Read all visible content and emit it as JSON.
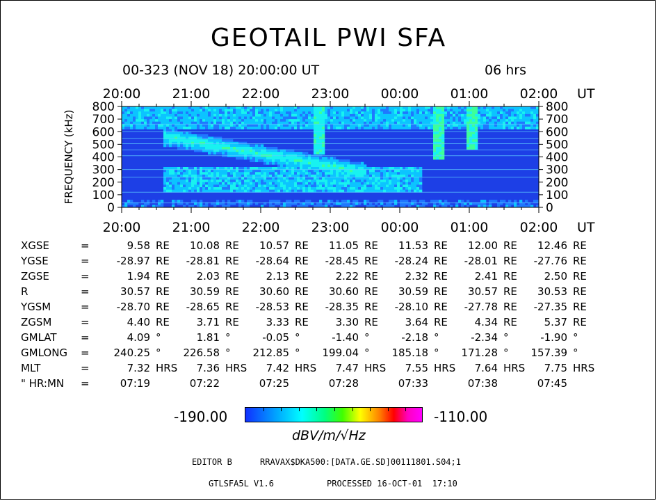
{
  "title": "GEOTAIL PWI SFA",
  "subtitle": {
    "date": "00-323 (NOV 18) 20:00:00 UT",
    "span": "06 hrs"
  },
  "chart_data": {
    "type": "heatmap",
    "title": "GEOTAIL PWI SFA",
    "xlabel": "UT",
    "ylabel": "FREQUENCY (kHz)",
    "x_ticks": [
      "20:00",
      "21:00",
      "22:00",
      "23:00",
      "00:00",
      "01:00",
      "02:00"
    ],
    "y_ticks": [
      "0",
      "100",
      "200",
      "300",
      "400",
      "500",
      "600",
      "700",
      "800"
    ],
    "ylim": [
      0,
      800
    ],
    "colorbar": {
      "min": "-190.00",
      "max": "-110.00",
      "unit": "dBV/m/√Hz",
      "colors": [
        "#1030ff",
        "#00ffff",
        "#40ff00",
        "#ffff00",
        "#ff0000",
        "#ff00ff"
      ]
    },
    "features": [
      {
        "name": "emission band",
        "t_start": 0.6,
        "t_end": 3.5,
        "f_start": 560,
        "f_end": 280,
        "level": 0.45
      },
      {
        "name": "broad band",
        "t_start": 0.6,
        "t_end": 4.3,
        "f_low": 120,
        "f_high": 320,
        "level": 0.35
      },
      {
        "name": "burst",
        "t": 2.85,
        "f_low": 420,
        "f_high": 800,
        "level": 0.4
      },
      {
        "name": "burst",
        "t": 4.55,
        "f_low": 380,
        "f_high": 800,
        "level": 0.45
      },
      {
        "name": "burst",
        "t": 5.05,
        "f_low": 460,
        "f_high": 800,
        "level": 0.45
      }
    ]
  },
  "orbit": {
    "rows": [
      {
        "name": "XGSE",
        "values": [
          "9.58",
          "10.08",
          "10.57",
          "11.05",
          "11.53",
          "12.00",
          "12.46"
        ],
        "unit": "RE"
      },
      {
        "name": "YGSE",
        "values": [
          "-28.97",
          "-28.81",
          "-28.64",
          "-28.45",
          "-28.24",
          "-28.01",
          "-27.76"
        ],
        "unit": "RE"
      },
      {
        "name": "ZGSE",
        "values": [
          "1.94",
          "2.03",
          "2.13",
          "2.22",
          "2.32",
          "2.41",
          "2.50"
        ],
        "unit": "RE"
      },
      {
        "name": "R",
        "values": [
          "30.57",
          "30.59",
          "30.60",
          "30.60",
          "30.59",
          "30.57",
          "30.53"
        ],
        "unit": "RE"
      },
      {
        "name": "YGSM",
        "values": [
          "-28.70",
          "-28.65",
          "-28.53",
          "-28.35",
          "-28.10",
          "-27.78",
          "-27.35"
        ],
        "unit": "RE"
      },
      {
        "name": "ZGSM",
        "values": [
          "4.40",
          "3.71",
          "3.33",
          "3.30",
          "3.64",
          "4.34",
          "5.37"
        ],
        "unit": "RE"
      },
      {
        "name": "GMLAT",
        "values": [
          "4.09",
          "1.81",
          "-0.05",
          "-1.40",
          "-2.18",
          "-2.34",
          "-1.90"
        ],
        "unit": "°"
      },
      {
        "name": "GMLONG",
        "values": [
          "240.25",
          "226.58",
          "212.85",
          "199.04",
          "185.18",
          "171.28",
          "157.39"
        ],
        "unit": "°"
      },
      {
        "name": "MLT",
        "values": [
          "7.32",
          "7.36",
          "7.42",
          "7.47",
          "7.55",
          "7.64",
          "7.75"
        ],
        "unit": "HRS"
      },
      {
        "name": "\" HR:MN",
        "values": [
          "07:19",
          "07:22",
          "07:25",
          "07:28",
          "07:33",
          "07:38",
          "07:45"
        ],
        "unit": ""
      }
    ],
    "eq": "="
  },
  "footer": {
    "editor": "EDITOR B",
    "path": "RRAVAX$DKA500:[DATA.GE.SD]00111801.S04;1",
    "program": "GTLSFA5L V1.6",
    "processed": "PROCESSED 16-OCT-01  17:10"
  }
}
